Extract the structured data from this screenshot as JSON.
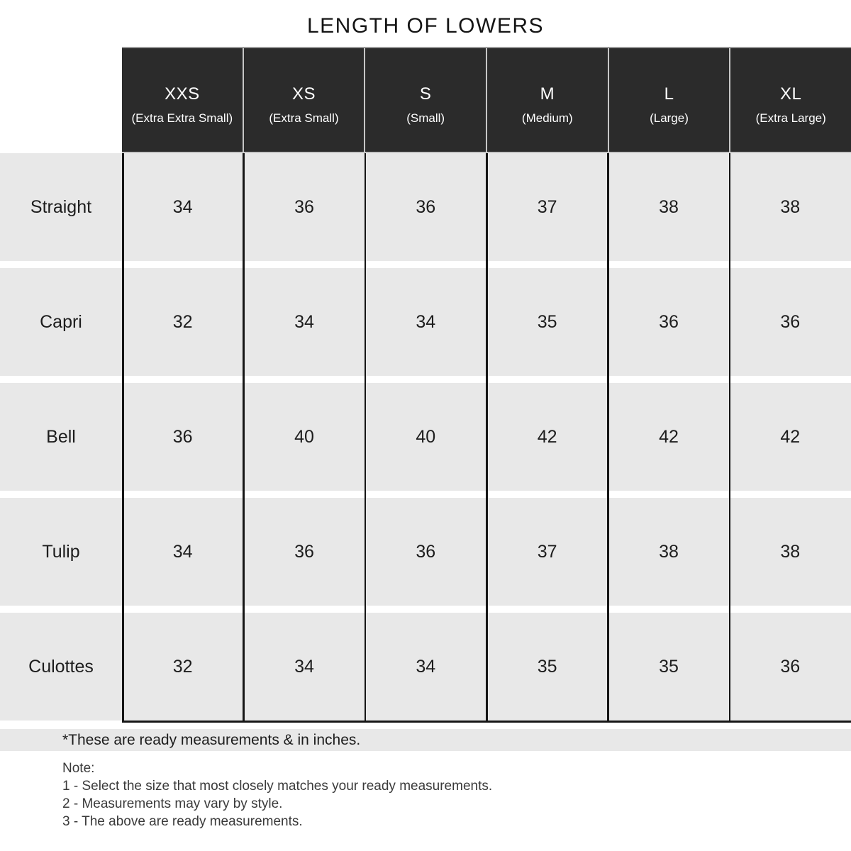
{
  "chart_data": {
    "type": "table",
    "title": "LENGTH OF LOWERS",
    "unit": "inches",
    "columns": [
      {
        "code": "XXS",
        "name": "(Extra Extra Small)"
      },
      {
        "code": "XS",
        "name": "(Extra Small)"
      },
      {
        "code": "S",
        "name": "(Small)"
      },
      {
        "code": "M",
        "name": "(Medium)"
      },
      {
        "code": "L",
        "name": "(Large)"
      },
      {
        "code": "XL",
        "name": "(Extra Large)"
      }
    ],
    "rows": [
      {
        "style": "Straight",
        "values": [
          34,
          36,
          36,
          37,
          38,
          38
        ]
      },
      {
        "style": "Capri",
        "values": [
          32,
          34,
          34,
          35,
          36,
          36
        ]
      },
      {
        "style": "Bell",
        "values": [
          36,
          40,
          40,
          42,
          42,
          42
        ]
      },
      {
        "style": "Tulip",
        "values": [
          34,
          36,
          36,
          37,
          38,
          38
        ]
      },
      {
        "style": "Culottes",
        "values": [
          32,
          34,
          34,
          35,
          35,
          36
        ]
      }
    ]
  },
  "footnote": "*These are ready measurements & in inches.",
  "note": {
    "heading": "Note:",
    "items": [
      "1 - Select the size that most closely matches your ready measurements.",
      "2 - Measurements may vary by style.",
      "3 - The above are ready measurements."
    ]
  },
  "colors": {
    "header_bg": "#2b2b2b",
    "header_text": "#ffffff",
    "row_bg": "#e8e8e8",
    "grid_line": "#161616",
    "body_text": "#1d1d1d",
    "note_text": "#3a3a3a"
  }
}
